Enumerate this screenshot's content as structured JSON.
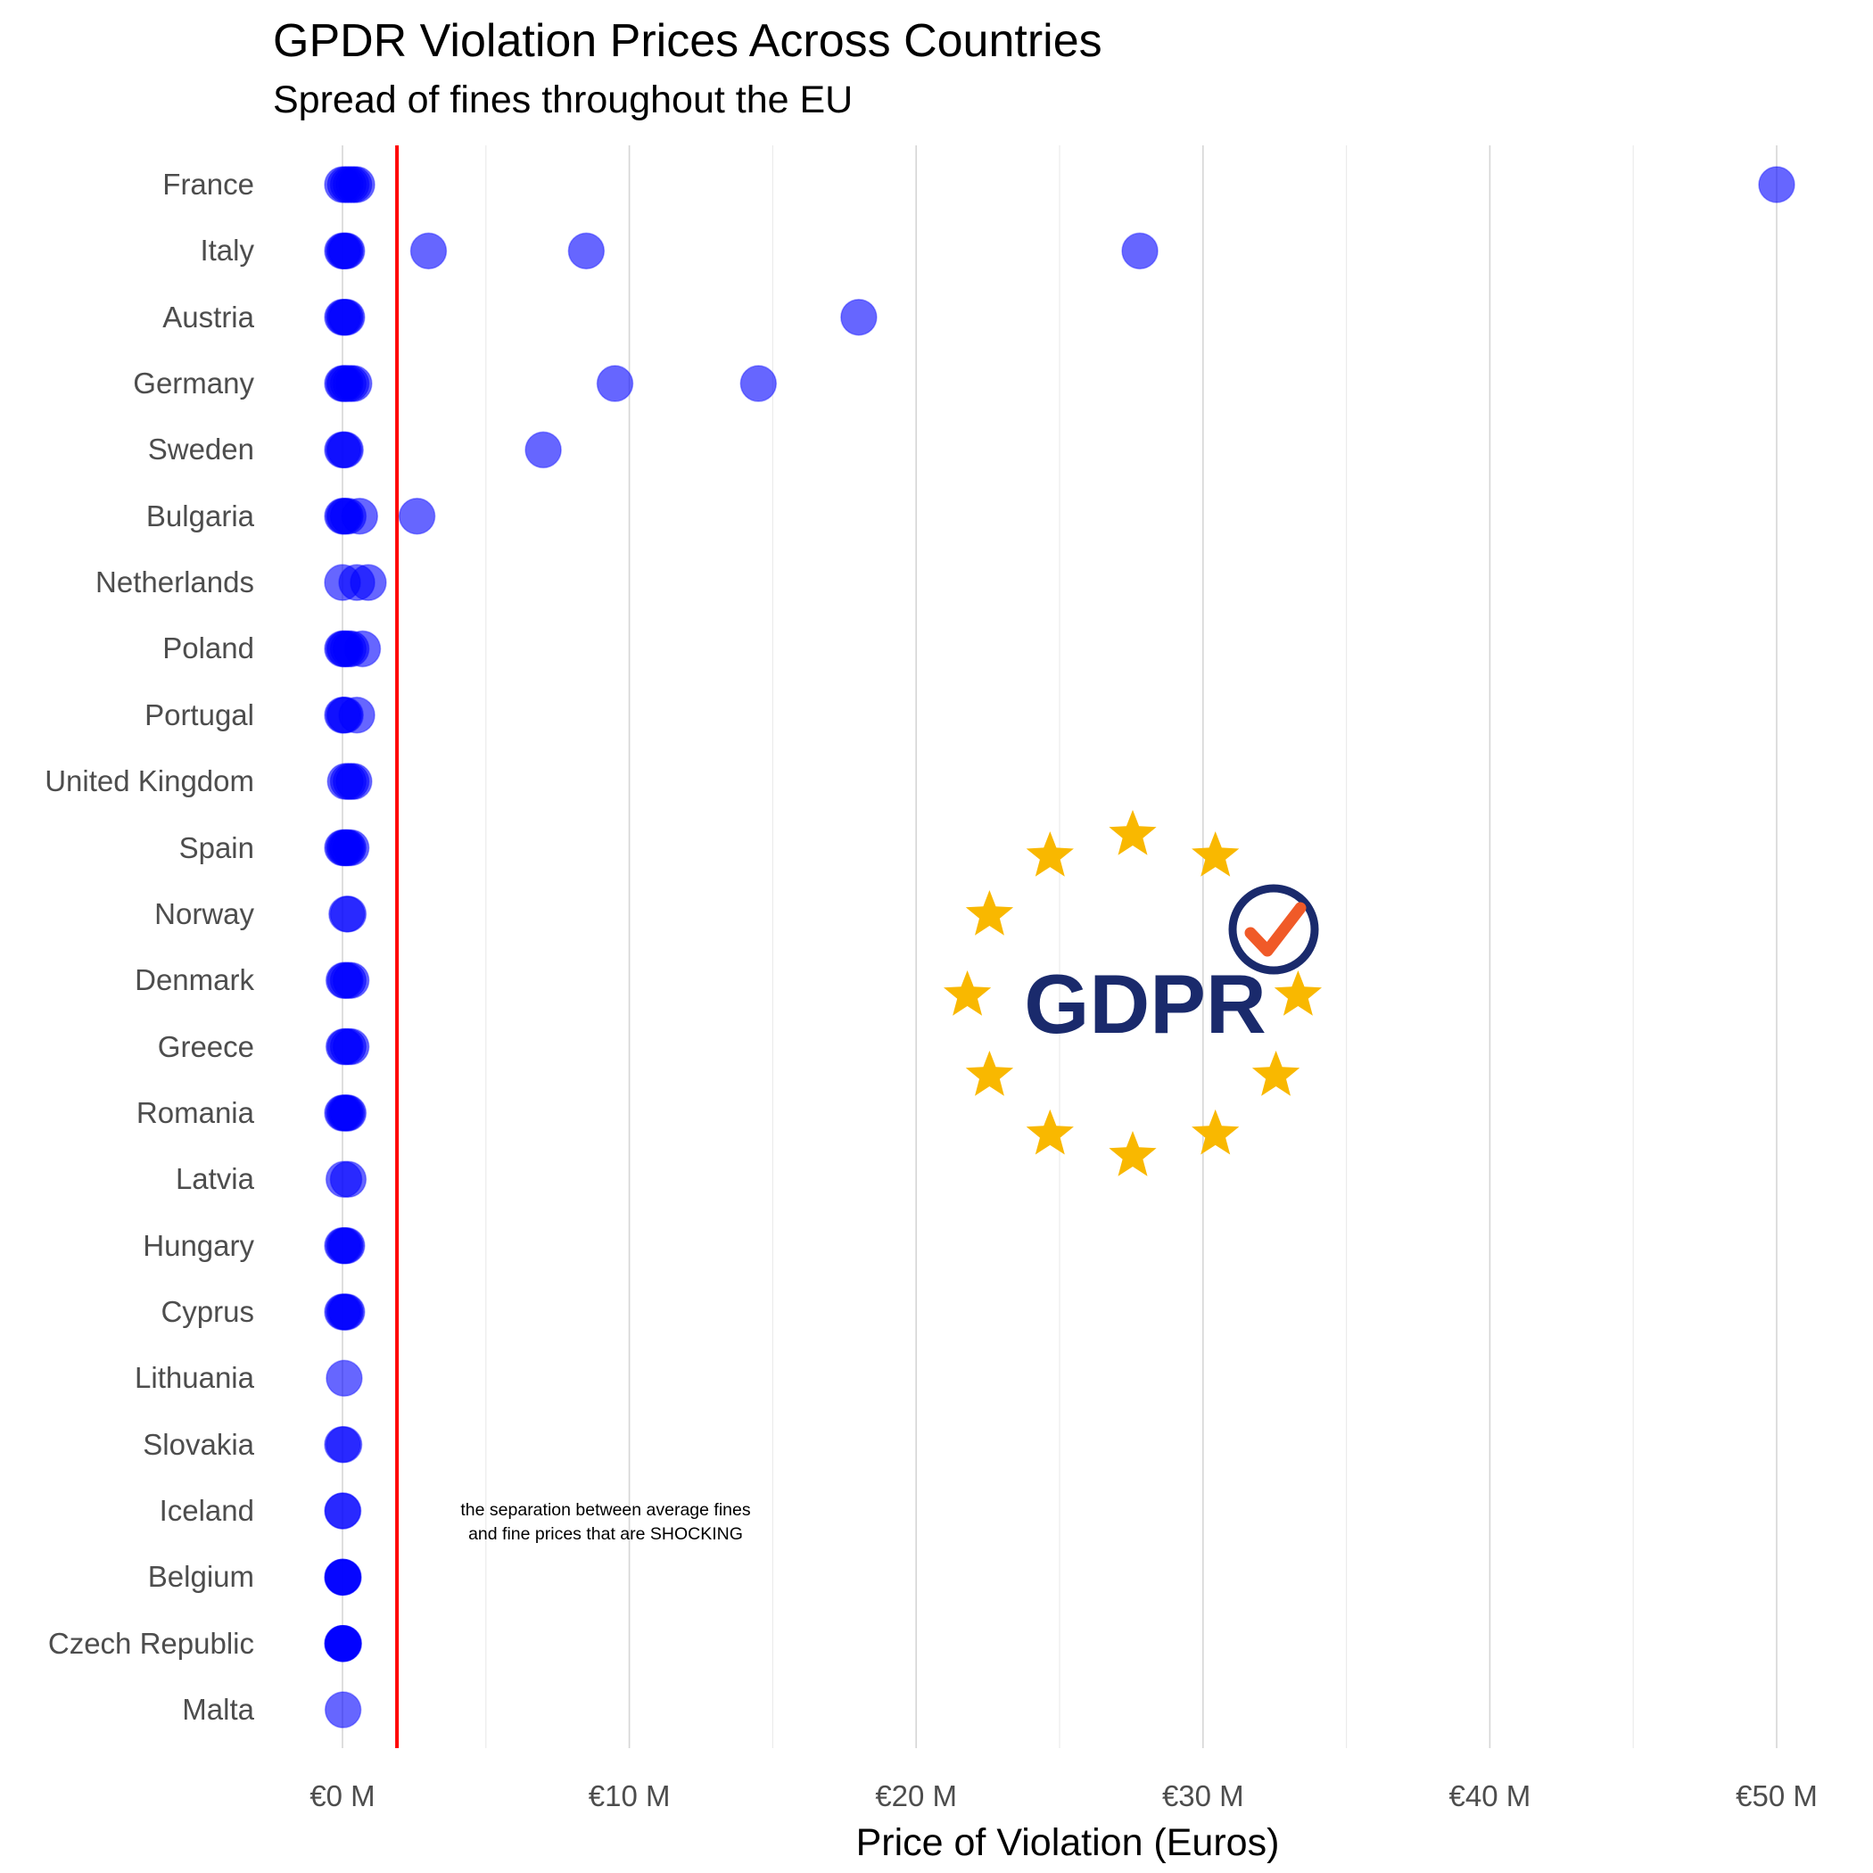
{
  "chart_data": {
    "type": "scatter",
    "title": "GPDR Violation Prices Across Countries",
    "subtitle": "Spread of fines throughout the EU",
    "xlabel": "Price of Violation (Euros)",
    "ylabel": "",
    "xlim": [
      -2,
      51
    ],
    "x_ticks": [
      0,
      10,
      20,
      30,
      40,
      50
    ],
    "x_tick_labels": [
      "€0 M",
      "€10 M",
      "€20 M",
      "€30 M",
      "€40 M",
      "€50 M"
    ],
    "grid": "vertical",
    "point_color": "#0000ff",
    "point_opacity": 0.6,
    "reference_line": {
      "x": 1.9,
      "color": "#ff0000"
    },
    "annotation": [
      "the separation between average fines",
      "and fine prices that are SHOCKING"
    ],
    "logo": {
      "text": "GDPR",
      "star_color": "#f9b800",
      "text_color": "#1a2a6c",
      "check_color": "#f05a28"
    },
    "countries": [
      {
        "name": "France",
        "values": [
          0,
          0.1,
          0.2,
          0.3,
          0.4,
          0.5,
          50
        ]
      },
      {
        "name": "Italy",
        "values": [
          0,
          0.05,
          0.1,
          0.15,
          3.0,
          8.5,
          27.8
        ]
      },
      {
        "name": "Austria",
        "values": [
          0,
          0.05,
          0.1,
          0.15,
          18.0
        ]
      },
      {
        "name": "Germany",
        "values": [
          0,
          0.05,
          0.1,
          0.2,
          0.3,
          0.4,
          9.5,
          14.5
        ]
      },
      {
        "name": "Sweden",
        "values": [
          0,
          0.05,
          0.1,
          7.0
        ]
      },
      {
        "name": "Bulgaria",
        "values": [
          0,
          0.05,
          0.1,
          0.2,
          0.6,
          2.6
        ]
      },
      {
        "name": "Netherlands",
        "values": [
          0,
          0.5,
          0.9
        ]
      },
      {
        "name": "Poland",
        "values": [
          0,
          0.05,
          0.1,
          0.2,
          0.3,
          0.7
        ]
      },
      {
        "name": "Portugal",
        "values": [
          0,
          0.05,
          0.1,
          0.5
        ]
      },
      {
        "name": "United Kingdom",
        "values": [
          0.1,
          0.2,
          0.3,
          0.4
        ]
      },
      {
        "name": "Spain",
        "values": [
          0,
          0.05,
          0.1,
          0.15,
          0.2,
          0.3
        ]
      },
      {
        "name": "Norway",
        "values": [
          0.15,
          0.2
        ]
      },
      {
        "name": "Denmark",
        "values": [
          0.05,
          0.1,
          0.2,
          0.3
        ]
      },
      {
        "name": "Greece",
        "values": [
          0.05,
          0.1,
          0.2,
          0.3
        ]
      },
      {
        "name": "Romania",
        "values": [
          0,
          0.05,
          0.1,
          0.15,
          0.2
        ]
      },
      {
        "name": "Latvia",
        "values": [
          0.05,
          0.2
        ]
      },
      {
        "name": "Hungary",
        "values": [
          0,
          0.05,
          0.1,
          0.15
        ]
      },
      {
        "name": "Cyprus",
        "values": [
          0,
          0.05,
          0.1,
          0.15
        ]
      },
      {
        "name": "Lithuania",
        "values": [
          0.06
        ]
      },
      {
        "name": "Slovakia",
        "values": [
          0,
          0.05
        ]
      },
      {
        "name": "Iceland",
        "values": [
          0,
          0.02
        ]
      },
      {
        "name": "Belgium",
        "values": [
          0,
          0.01,
          0.02,
          0.03
        ]
      },
      {
        "name": "Czech Republic",
        "values": [
          0,
          0.01,
          0.02,
          0.03,
          0.04
        ]
      },
      {
        "name": "Malta",
        "values": [
          0.02
        ]
      }
    ]
  }
}
